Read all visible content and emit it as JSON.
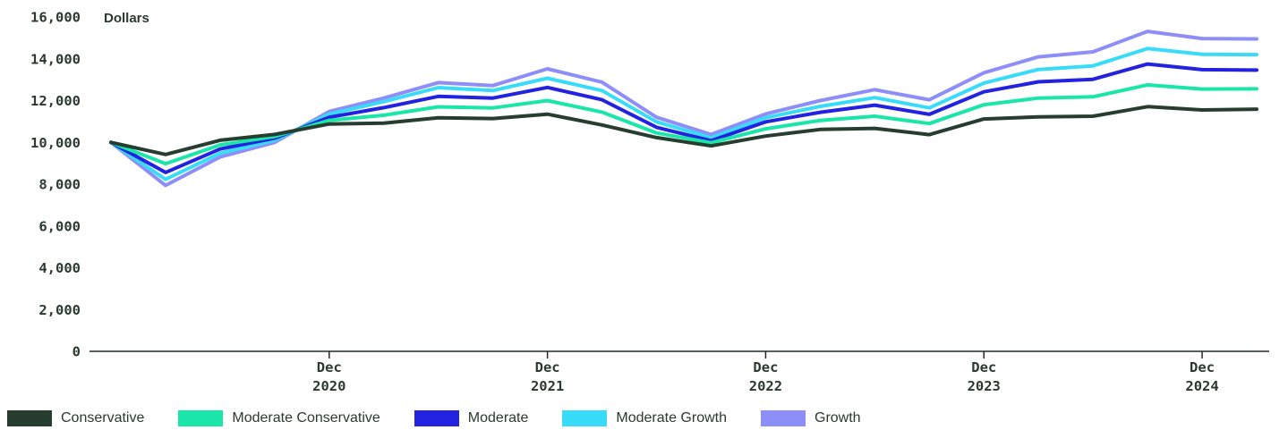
{
  "chart_data": {
    "type": "line",
    "ylabel": "Dollars",
    "ylim": [
      0,
      16000
    ],
    "yticks": [
      "0",
      "2,000",
      "4,000",
      "6,000",
      "8,000",
      "10,000",
      "12,000",
      "14,000",
      "16,000"
    ],
    "x_tick_labels": [
      {
        "month": "Dec",
        "year": "2020"
      },
      {
        "month": "Dec",
        "year": "2021"
      },
      {
        "month": "Dec",
        "year": "2022"
      },
      {
        "month": "Dec",
        "year": "2023"
      },
      {
        "month": "Dec",
        "year": "2024"
      }
    ],
    "x": [
      "Dec 2019",
      "Mar 2020",
      "Jun 2020",
      "Sep 2020",
      "Dec 2020",
      "Mar 2021",
      "Jun 2021",
      "Sep 2021",
      "Dec 2021",
      "Mar 2022",
      "Jun 2022",
      "Sep 2022",
      "Dec 2022",
      "Mar 2023",
      "Jun 2023",
      "Sep 2023",
      "Dec 2023",
      "Mar 2024",
      "Jun 2024",
      "Sep 2024",
      "Dec 2024",
      "Mar 2025"
    ],
    "series": [
      {
        "name": "Conservative",
        "color": "#263d30",
        "values": [
          10000,
          9420,
          10100,
          10380,
          10880,
          10920,
          11180,
          11140,
          11350,
          10830,
          10230,
          9830,
          10300,
          10620,
          10670,
          10370,
          11120,
          11220,
          11250,
          11710,
          11550,
          11590
        ]
      },
      {
        "name": "Moderate Conservative",
        "color": "#19e6a8",
        "values": [
          10000,
          8980,
          9880,
          10280,
          11050,
          11300,
          11700,
          11650,
          12000,
          11450,
          10450,
          9980,
          10650,
          11050,
          11250,
          10900,
          11800,
          12120,
          12180,
          12750,
          12550,
          12560
        ]
      },
      {
        "name": "Moderate",
        "color": "#2222e0",
        "values": [
          10000,
          8560,
          9680,
          10200,
          11200,
          11660,
          12200,
          12120,
          12630,
          12040,
          10720,
          10080,
          10980,
          11440,
          11780,
          11340,
          12420,
          12900,
          13020,
          13750,
          13480,
          13460
        ]
      },
      {
        "name": "Moderate Growth",
        "color": "#38dcf8",
        "values": [
          10000,
          8230,
          9480,
          10100,
          11350,
          11950,
          12620,
          12480,
          13070,
          12480,
          10980,
          10220,
          11180,
          11720,
          12140,
          11650,
          12840,
          13490,
          13660,
          14490,
          14210,
          14200
        ]
      },
      {
        "name": "Growth",
        "color": "#8e8ef8",
        "values": [
          10000,
          7940,
          9300,
          10000,
          11480,
          12120,
          12860,
          12720,
          13520,
          12880,
          11200,
          10380,
          11360,
          12000,
          12520,
          12040,
          13330,
          14090,
          14330,
          15310,
          14970,
          14950
        ]
      }
    ],
    "legend_placement": "bottom",
    "grid": false
  }
}
